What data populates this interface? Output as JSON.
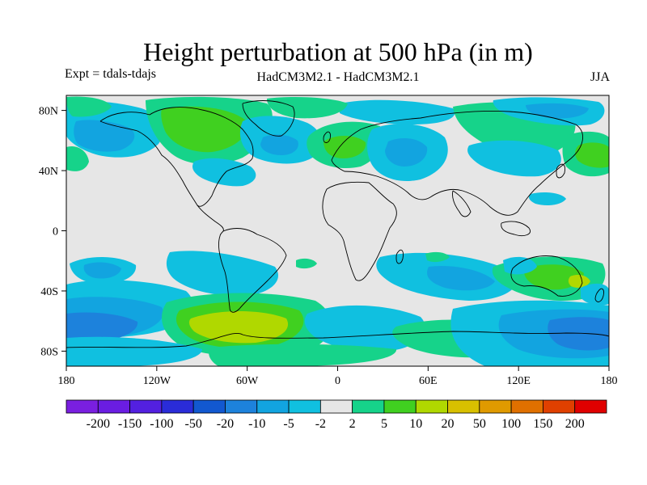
{
  "title": "Height perturbation at 500 hPa (in m)",
  "left_label": "Expt = tdals-tdajs",
  "center_label": "HadCM3M2.1 - HadCM3M2.1",
  "right_label": "JJA",
  "lat_ticks": [
    {
      "label": "80N",
      "lat": 80
    },
    {
      "label": "40N",
      "lat": 40
    },
    {
      "label": "0",
      "lat": 0
    },
    {
      "label": "40S",
      "lat": -40
    },
    {
      "label": "80S",
      "lat": -80
    }
  ],
  "lon_ticks": [
    {
      "label": "180",
      "lon": -180
    },
    {
      "label": "120W",
      "lon": -120
    },
    {
      "label": "60W",
      "lon": -60
    },
    {
      "label": "0",
      "lon": 0
    },
    {
      "label": "60E",
      "lon": 60
    },
    {
      "label": "120E",
      "lon": 120
    },
    {
      "label": "180",
      "lon": 180
    }
  ],
  "colorbar": {
    "colors": [
      "#7a1fe0",
      "#6a1de2",
      "#5320e0",
      "#2a2cd8",
      "#1258d0",
      "#1d82dc",
      "#12a4e0",
      "#10c0e0",
      "#e6e6e6",
      "#16d38a",
      "#40d020",
      "#b0d800",
      "#d8c000",
      "#e09a00",
      "#e07000",
      "#e04000",
      "#e00000"
    ],
    "labels": [
      "-200",
      "-150",
      "-100",
      "-50",
      "-20",
      "-10",
      "-5",
      "-2",
      "2",
      "5",
      "10",
      "20",
      "50",
      "100",
      "150",
      "200"
    ]
  },
  "palette": {
    "background": "#e6e6e6",
    "pos_light": "#16d38a",
    "pos_mid": "#40d020",
    "pos_strong": "#b0d800",
    "pos_max": "#d8c000",
    "neg_light": "#10c0e0",
    "neg_mid": "#12a4e0",
    "neg_strong": "#1d82dc",
    "neg_max": "#1258d0"
  }
}
